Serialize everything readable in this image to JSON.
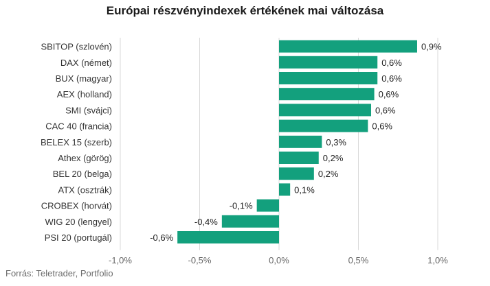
{
  "title": "Európai részvényindexek értékének mai változása",
  "source": "Forrás: Teletrader, Portfolio",
  "colors": {
    "bar": "#13a07d",
    "grid": "#d9d9d9",
    "text": "#333333",
    "axis_text": "#666666"
  },
  "chart_data": {
    "type": "bar",
    "orientation": "horizontal",
    "title": "Európai részvényindexek értékének mai változása",
    "xlabel": "",
    "ylabel": "",
    "xlim": [
      -1.0,
      1.0
    ],
    "grid": true,
    "x_ticks": [
      -1.0,
      -0.5,
      0.0,
      0.5,
      1.0
    ],
    "x_tick_labels": [
      "-1,0%",
      "-0,5%",
      "0,0%",
      "0,5%",
      "1,0%"
    ],
    "categories": [
      "SBITOP (szlovén)",
      "DAX (német)",
      "BUX (magyar)",
      "AEX (holland)",
      "SMI (svájci)",
      "CAC 40 (francia)",
      "BELEX 15 (szerb)",
      "Athex (görög)",
      "BEL 20 (belga)",
      "ATX (osztrák)",
      "CROBEX (horvát)",
      "WIG 20 (lengyel)",
      "PSI 20 (portugál)"
    ],
    "values": [
      0.87,
      0.62,
      0.62,
      0.6,
      0.58,
      0.56,
      0.27,
      0.25,
      0.22,
      0.07,
      -0.14,
      -0.36,
      -0.64
    ],
    "value_labels": [
      "0,9%",
      "0,6%",
      "0,6%",
      "0,6%",
      "0,6%",
      "0,6%",
      "0,3%",
      "0,2%",
      "0,2%",
      "0,1%",
      "-0,1%",
      "-0,4%",
      "-0,6%"
    ]
  }
}
